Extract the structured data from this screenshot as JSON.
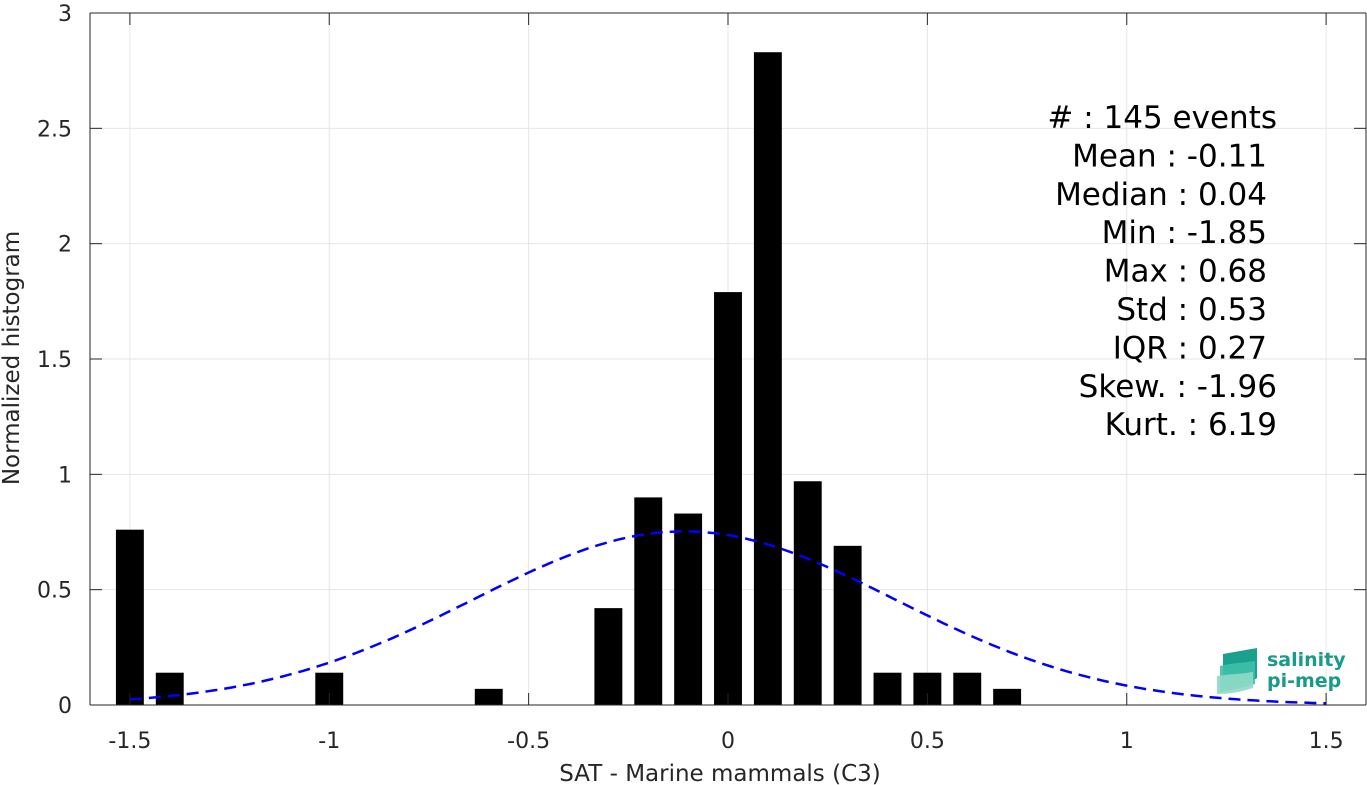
{
  "chart_data": {
    "type": "bar",
    "xlabel": "SAT - Marine mammals (C3)",
    "ylabel": "Normalized histogram",
    "xlim": [
      -1.6,
      1.6
    ],
    "ylim": [
      0,
      3
    ],
    "xticks": [
      -1.5,
      -1,
      -0.5,
      0,
      0.5,
      1,
      1.5
    ],
    "xtick_labels": [
      "-1.5",
      "-1",
      "-0.5",
      "0",
      "0.5",
      "1",
      "1.5"
    ],
    "yticks": [
      0,
      0.5,
      1,
      1.5,
      2,
      2.5,
      3
    ],
    "ytick_labels": [
      "0",
      "0.5",
      "1",
      "1.5",
      "2",
      "2.5",
      "3"
    ],
    "grid": true,
    "bar_width": 0.07,
    "bars": [
      {
        "x": -1.5,
        "y": 0.76
      },
      {
        "x": -1.4,
        "y": 0.14
      },
      {
        "x": -1.0,
        "y": 0.14
      },
      {
        "x": -0.6,
        "y": 0.07
      },
      {
        "x": -0.3,
        "y": 0.42
      },
      {
        "x": -0.2,
        "y": 0.9
      },
      {
        "x": -0.1,
        "y": 0.83
      },
      {
        "x": 0.0,
        "y": 1.79
      },
      {
        "x": 0.1,
        "y": 2.83
      },
      {
        "x": 0.2,
        "y": 0.97
      },
      {
        "x": 0.3,
        "y": 0.69
      },
      {
        "x": 0.4,
        "y": 0.14
      },
      {
        "x": 0.5,
        "y": 0.14
      },
      {
        "x": 0.6,
        "y": 0.14
      },
      {
        "x": 0.7,
        "y": 0.07
      }
    ],
    "bar_color": "#000000",
    "fit_curve": {
      "type": "gaussian",
      "mean": -0.11,
      "std": 0.53,
      "x_range": [
        -1.5,
        1.5
      ],
      "color": "#0000ff",
      "style": "dashed"
    },
    "stats": [
      {
        "label": "#  : 145 events"
      },
      {
        "label": "Mean : -0.11"
      },
      {
        "label": "Median : 0.04"
      },
      {
        "label": "Min : -1.85"
      },
      {
        "label": "Max : 0.68"
      },
      {
        "label": "Std : 0.53"
      },
      {
        "label": "IQR : 0.27"
      },
      {
        "label": "Skew. : -1.96"
      },
      {
        "label": "Kurt. : 6.19"
      }
    ]
  },
  "logo": {
    "line1": "salinity",
    "line2": "pi-mep",
    "color": "#1a9a8a"
  }
}
